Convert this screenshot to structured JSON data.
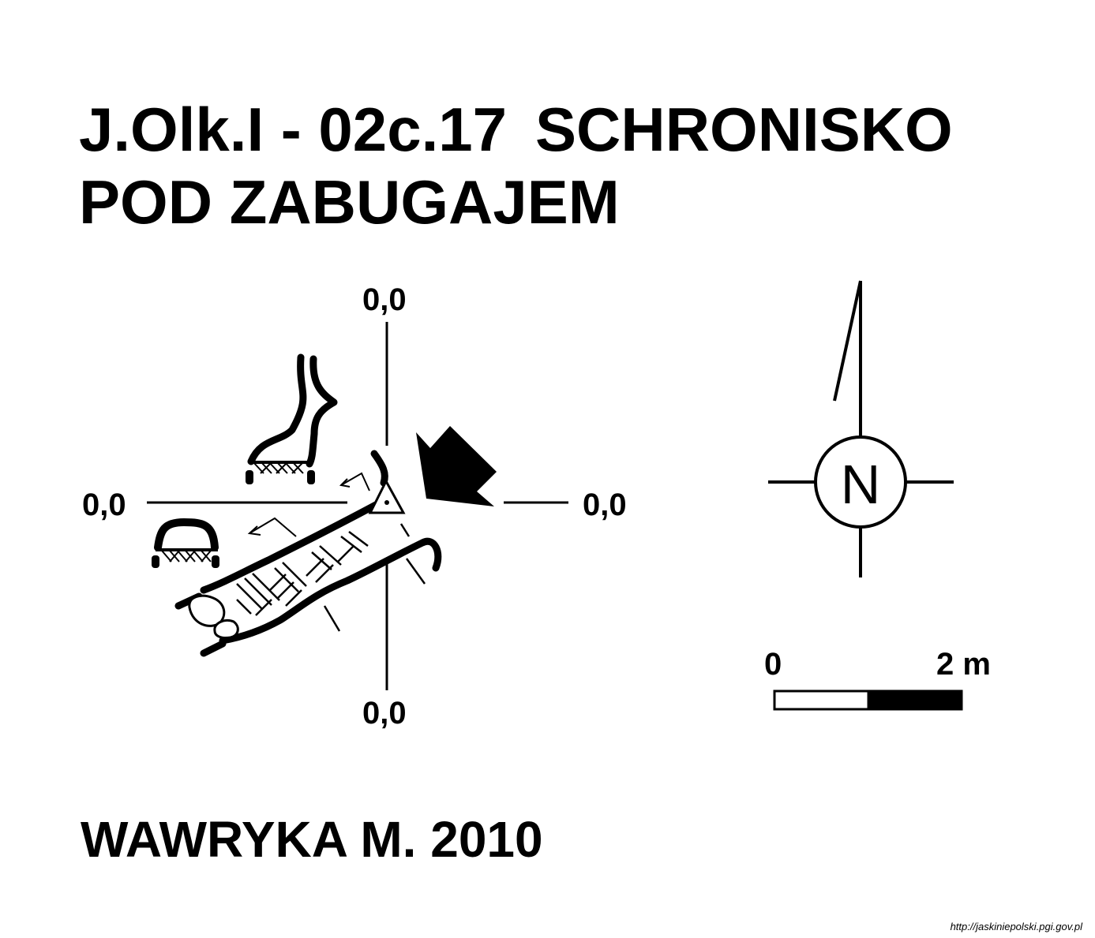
{
  "title": {
    "code": "J.Olk.I - 02c.17",
    "name_line1": "SCHRONISKO",
    "name_line2": "POD ZABUGAJEM"
  },
  "grid_labels": {
    "top": "0,0",
    "left": "0,0",
    "right": "0,0",
    "bottom": "0,0"
  },
  "north_arrow": {
    "letter": "N"
  },
  "scale_bar": {
    "start_label": "0",
    "end_label": "2 m",
    "length_m": 2
  },
  "author": "WAWRYKA M. 2010",
  "source_url": "http://jaskiniepolski.pgi.gov.pl",
  "colors": {
    "ink": "#000000",
    "background": "#ffffff"
  }
}
